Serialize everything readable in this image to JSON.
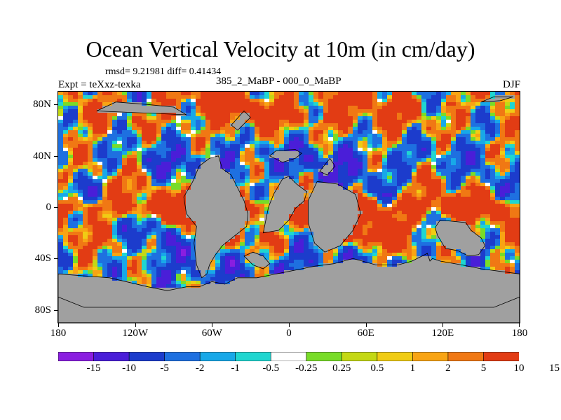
{
  "chart_data": {
    "type": "heatmap",
    "title": "Ocean Vertical Velocity at 10m (in cm/day)",
    "stats": {
      "rmsd_text": "rmsd= 9.21981 diff= 0.41434"
    },
    "experiment_label": "Expt = teXxz-texka",
    "difference_label": "385_2_MaBP - 000_0_MaBP",
    "season": "DJF",
    "x_axis": {
      "range": [
        -180,
        180
      ],
      "ticks": [
        {
          "value": -180,
          "label": "180"
        },
        {
          "value": -120,
          "label": "120W"
        },
        {
          "value": -60,
          "label": "60W"
        },
        {
          "value": 0,
          "label": "0"
        },
        {
          "value": 60,
          "label": "60E"
        },
        {
          "value": 120,
          "label": "120E"
        },
        {
          "value": 180,
          "label": "180"
        }
      ]
    },
    "y_axis": {
      "range": [
        -90,
        90
      ],
      "ticks": [
        {
          "value": 80,
          "label": "80N"
        },
        {
          "value": 40,
          "label": "40N"
        },
        {
          "value": 0,
          "label": "0"
        },
        {
          "value": -40,
          "label": "40S"
        },
        {
          "value": -80,
          "label": "80S"
        }
      ]
    },
    "colorbar": {
      "colors": [
        "#8a1ee0",
        "#4a1ed8",
        "#1c3ccc",
        "#1e70e0",
        "#18a8e8",
        "#20d6d0",
        "#ffffff",
        "#78dc28",
        "#c4d814",
        "#f0cc14",
        "#f8a414",
        "#f07814",
        "#e23c14"
      ],
      "labels": [
        "-15",
        "-10",
        "-5",
        "-2",
        "-1",
        "-0.5",
        "-0.25",
        "0.25",
        "0.5",
        "1",
        "2",
        "5",
        "10",
        "15"
      ]
    },
    "land_color": "#a0a0a0"
  }
}
